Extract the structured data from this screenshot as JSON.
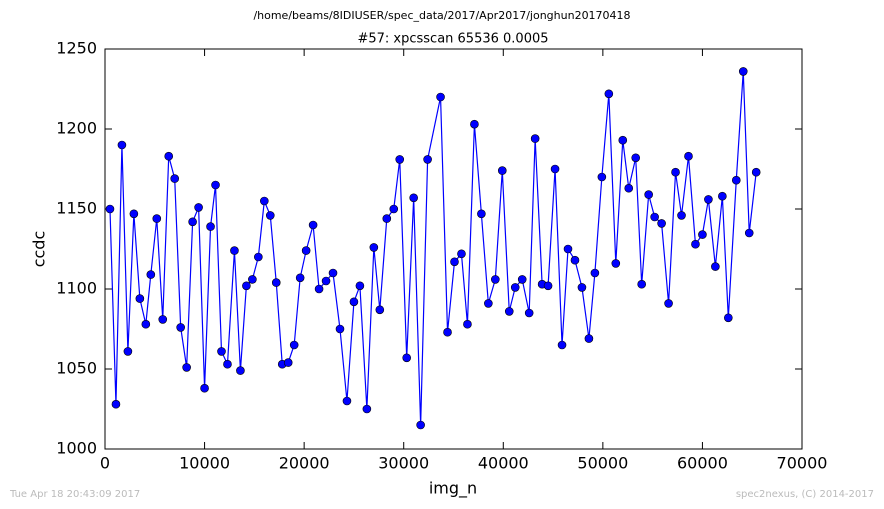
{
  "chart_data": {
    "type": "line",
    "suptitle": "/home/beams/8IDIUSER/spec_data/2017/Apr2017/jonghun20170418",
    "title": "#57: xpcsscan 65536 0.0005",
    "xlabel": "img_n",
    "ylabel": "ccdc",
    "footer_left": "Tue Apr 18 20:43:09 2017",
    "footer_right": "spec2nexus, (C) 2014-2017",
    "xlim": [
      0,
      70000
    ],
    "xticks": [
      0,
      10000,
      20000,
      30000,
      40000,
      50000,
      60000,
      70000
    ],
    "ylim": [
      1000,
      1250
    ],
    "yticks": [
      1000,
      1050,
      1100,
      1150,
      1200,
      1250
    ],
    "x": [
      500,
      1100,
      1700,
      2300,
      2900,
      3500,
      4100,
      4600,
      5200,
      5800,
      6400,
      7000,
      7600,
      8200,
      8800,
      9400,
      10000,
      10600,
      11100,
      11700,
      12300,
      13000,
      13600,
      14200,
      14800,
      15400,
      16000,
      16600,
      17200,
      17800,
      18400,
      19000,
      19600,
      20200,
      20900,
      21500,
      22200,
      22900,
      23600,
      24300,
      25000,
      25600,
      26300,
      27000,
      27600,
      28300,
      29000,
      29600,
      30300,
      31000,
      31700,
      32400,
      33700,
      34400,
      35100,
      35800,
      36400,
      37100,
      37800,
      38500,
      39200,
      39900,
      40600,
      41200,
      41900,
      42600,
      43200,
      43900,
      44500,
      45200,
      45900,
      46500,
      47200,
      47900,
      48600,
      49200,
      49900,
      50600,
      51300,
      52000,
      52600,
      53300,
      53900,
      54600,
      55200,
      55900,
      56600,
      57300,
      57900,
      58600,
      59300,
      60000,
      60600,
      61300,
      62000,
      62600,
      63400,
      64100,
      64700,
      65400
    ],
    "series": [
      {
        "name": "ccdc",
        "color": "#0000ff",
        "values": [
          1150,
          1028,
          1190,
          1061,
          1147,
          1094,
          1078,
          1109,
          1144,
          1081,
          1183,
          1169,
          1076,
          1051,
          1142,
          1151,
          1038,
          1139,
          1165,
          1061,
          1053,
          1124,
          1049,
          1102,
          1106,
          1120,
          1155,
          1146,
          1104,
          1053,
          1054,
          1065,
          1107,
          1124,
          1140,
          1100,
          1105,
          1110,
          1075,
          1030,
          1092,
          1102,
          1025,
          1126,
          1087,
          1144,
          1150,
          1181,
          1057,
          1157,
          1015,
          1181,
          1220,
          1073,
          1117,
          1122,
          1078,
          1203,
          1147,
          1091,
          1106,
          1174,
          1086,
          1101,
          1106,
          1085,
          1194,
          1103,
          1102,
          1175,
          1065,
          1125,
          1118,
          1101,
          1069,
          1110,
          1170,
          1222,
          1116,
          1193,
          1163,
          1182,
          1103,
          1159,
          1145,
          1141,
          1091,
          1173,
          1146,
          1183,
          1128,
          1134,
          1156,
          1114,
          1158,
          1082,
          1168,
          1236,
          1135,
          1173
        ]
      }
    ]
  }
}
